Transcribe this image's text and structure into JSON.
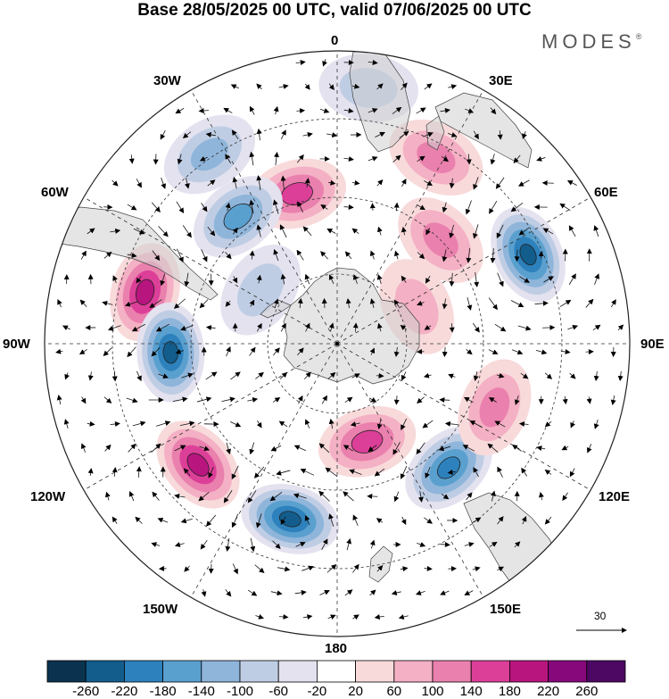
{
  "header": {
    "title": "Base 28/05/2025 00 UTC, valid 07/06/2025 00 UTC",
    "brand": "MODES",
    "brand_mark": "®"
  },
  "map": {
    "projection": "south-polar-stereographic",
    "lon_labels": {
      "lon_0": "0",
      "lon_30e": "30E",
      "lon_60e": "60E",
      "lon_90e": "90E",
      "lon_120e": "120E",
      "lon_150e": "150E",
      "lon_180": "180",
      "lon_150w": "150W",
      "lon_120w": "120W",
      "lon_90w": "90W",
      "lon_60w": "60W",
      "lon_30w": "30W"
    },
    "reference_vector": "30",
    "anomaly_centers": [
      {
        "lon": -75,
        "lat_ring": 0.68,
        "value": 180
      },
      {
        "lon": -93,
        "lat_ring": 0.57,
        "value": -220
      },
      {
        "lon": -131,
        "lat_ring": 0.63,
        "value": 180
      },
      {
        "lon": -165,
        "lat_ring": 0.62,
        "value": -220
      },
      {
        "lon": 163,
        "lat_ring": 0.35,
        "value": 140
      },
      {
        "lon": 138,
        "lat_ring": 0.57,
        "value": -180
      },
      {
        "lon": 112,
        "lat_ring": 0.58,
        "value": 100
      },
      {
        "lon": 65,
        "lat_ring": 0.72,
        "value": -220
      },
      {
        "lon": 45,
        "lat_ring": 0.5,
        "value": 100
      },
      {
        "lon": 28,
        "lat_ring": 0.72,
        "value": 100
      },
      {
        "lon": 7,
        "lat_ring": 0.88,
        "value": -60
      },
      {
        "lon": -15,
        "lat_ring": 0.53,
        "value": 140
      },
      {
        "lon": -38,
        "lat_ring": 0.55,
        "value": -140
      },
      {
        "lon": -34,
        "lat_ring": 0.78,
        "value": -100
      },
      {
        "lon": 65,
        "lat_ring": 0.3,
        "value": 60
      },
      {
        "lon": -55,
        "lat_ring": 0.32,
        "value": -60
      }
    ]
  },
  "colorbar": {
    "levels": [
      "-260",
      "-220",
      "-180",
      "-140",
      "-100",
      "-60",
      "-20",
      "20",
      "60",
      "100",
      "140",
      "180",
      "220",
      "260"
    ],
    "colors": [
      "#0b3350",
      "#125d8c",
      "#2d81bc",
      "#5aa0cf",
      "#8fb5da",
      "#bfcde4",
      "#e4e2ef",
      "#ffffff",
      "#f8dadb",
      "#f4b0c4",
      "#ea80ad",
      "#dc3f98",
      "#b8157f",
      "#86087a",
      "#4d0863"
    ]
  }
}
